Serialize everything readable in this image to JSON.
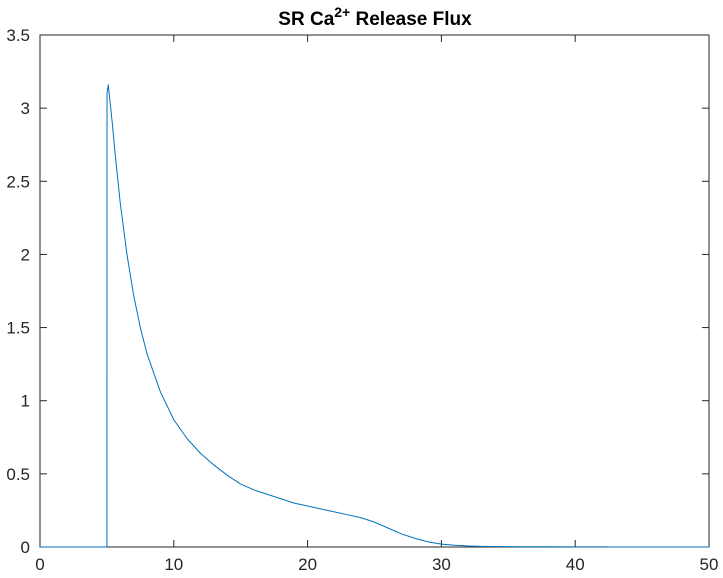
{
  "chart_data": {
    "type": "line",
    "title": {
      "main": "SR Ca",
      "superscript": "2+",
      "suffix": " Release Flux"
    },
    "xlabel": "",
    "ylabel": "",
    "xlim": [
      0,
      50
    ],
    "ylim": [
      0,
      3.5
    ],
    "x_ticks": [
      "0",
      "10",
      "20",
      "30",
      "40",
      "50"
    ],
    "y_ticks": [
      "0",
      "0.5",
      "1",
      "1.5",
      "2",
      "2.5",
      "3",
      "3.5"
    ],
    "grid": false,
    "legend": "none",
    "line_color": "#0072BD",
    "series": [
      {
        "x": [
          0,
          5,
          5.01,
          5.1,
          5.4,
          5.6,
          6,
          6.5,
          7,
          7.5,
          8,
          9,
          10,
          11,
          12,
          13,
          14,
          15,
          16,
          17,
          18,
          19,
          20,
          21,
          22,
          23,
          24,
          25,
          26,
          27,
          28,
          29,
          30,
          31,
          32,
          33,
          34,
          36,
          38,
          40,
          42.5,
          42.5,
          50
        ],
        "y": [
          0,
          0,
          3.1,
          3.16,
          2.9,
          2.7,
          2.35,
          2.0,
          1.72,
          1.5,
          1.32,
          1.06,
          0.87,
          0.74,
          0.64,
          0.56,
          0.49,
          0.43,
          0.39,
          0.36,
          0.33,
          0.3,
          0.28,
          0.26,
          0.24,
          0.22,
          0.2,
          0.17,
          0.13,
          0.09,
          0.06,
          0.035,
          0.02,
          0.012,
          0.007,
          0.004,
          0.003,
          0.002,
          0.002,
          0.001,
          0.001,
          0,
          0
        ]
      }
    ]
  }
}
